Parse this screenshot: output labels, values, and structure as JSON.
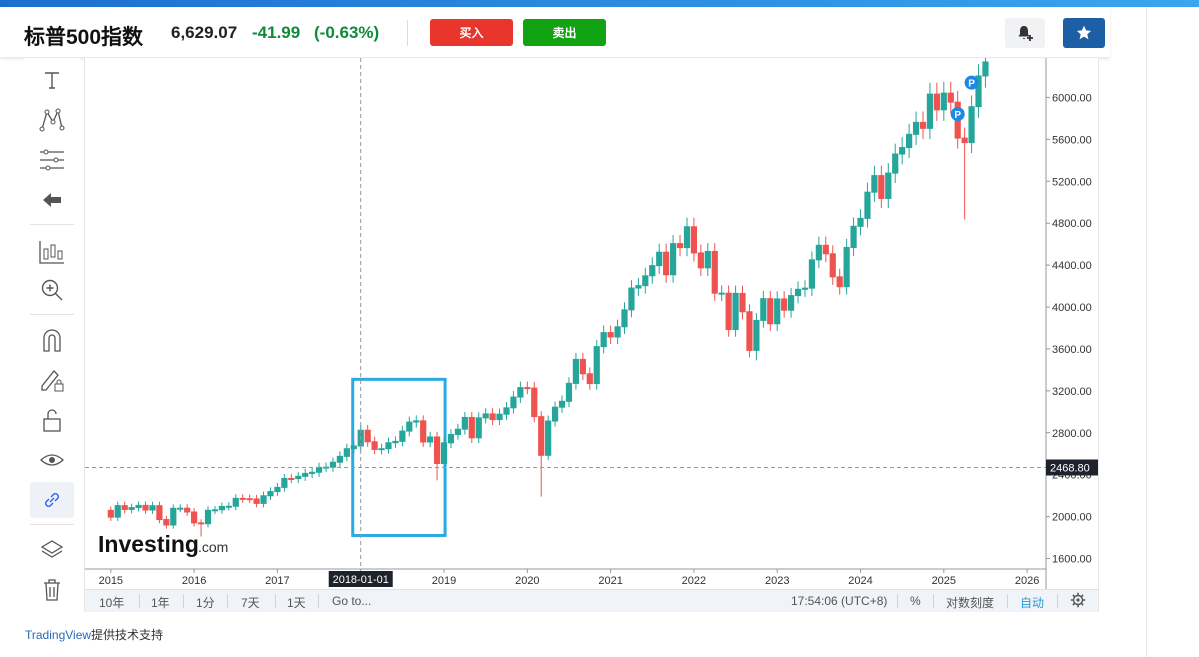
{
  "header": {
    "name": "标普500指数",
    "price": "6,629.07",
    "change": "-41.99",
    "change_pct": "(-0.63%)",
    "buy_label": "买入",
    "sell_label": "卖出"
  },
  "toolbar": {
    "items": [
      "text-tool-icon",
      "pattern-tool-icon",
      "fib-tool-icon",
      "arrow-left-icon",
      "indicator-icon",
      "zoom-in-icon",
      "magnet-icon",
      "lock-drawing-icon",
      "lock-icon",
      "eye-icon",
      "link-icon",
      "layers-icon",
      "trash-icon"
    ],
    "active": "link-icon"
  },
  "bottom_bar": {
    "ranges": [
      "10年",
      "1年",
      "1分",
      "7天",
      "1天"
    ],
    "goto": "Go to...",
    "time": "17:54:06 (UTC+8)",
    "percent": "%",
    "log": "对数刻度",
    "auto": "自动"
  },
  "footer": {
    "brand": "TradingView",
    "suffix": "提供技术支持"
  },
  "logo": {
    "text": "Investing",
    "suffix": ".com"
  },
  "colors": {
    "up": "#26a69a",
    "down": "#ef5350",
    "highlight_box": "#29aae2",
    "crosshair_label_bg": "#1e222d"
  },
  "chart_data": {
    "type": "candlestick",
    "title": "标普500指数",
    "interval": "monthly",
    "ylim": [
      1500,
      6300
    ],
    "yticks": [
      1600,
      2000,
      2400,
      2800,
      3200,
      3600,
      4000,
      4400,
      4800,
      5200,
      5600,
      6000
    ],
    "ytick_labels": [
      "1600.00",
      "2000.00",
      "2400.00",
      "2800.00",
      "3200.00",
      "3600.00",
      "4000.00",
      "4400.00",
      "4800.00",
      "5200.00",
      "5600.00",
      "6000.00"
    ],
    "xlim": [
      "2014-10",
      "2026-03"
    ],
    "xticks": [
      "2015",
      "2016",
      "2017",
      "2018-01-01",
      "2019",
      "2020",
      "2021",
      "2022",
      "2023",
      "2024",
      "2025",
      "2026"
    ],
    "crosshair": {
      "x_label": "2018-01-01",
      "y_label": "2468.80",
      "y_value": 2468.8
    },
    "highlight_range": {
      "start": "2018-01",
      "end": "2018-12",
      "low": 1820,
      "high": 3310
    },
    "markers": [
      {
        "date": "2025-03",
        "label": "P"
      },
      {
        "date": "2025-05",
        "label": "P"
      }
    ],
    "monthly_close": [
      [
        "2014-12",
        2059
      ],
      [
        "2015-01",
        1995
      ],
      [
        "2015-02",
        2105
      ],
      [
        "2015-03",
        2068
      ],
      [
        "2015-04",
        2086
      ],
      [
        "2015-05",
        2107
      ],
      [
        "2015-06",
        2063
      ],
      [
        "2015-07",
        2104
      ],
      [
        "2015-08",
        1972
      ],
      [
        "2015-09",
        1920
      ],
      [
        "2015-10",
        2079
      ],
      [
        "2015-11",
        2080
      ],
      [
        "2015-12",
        2044
      ],
      [
        "2016-01",
        1940
      ],
      [
        "2016-02",
        1932
      ],
      [
        "2016-03",
        2060
      ],
      [
        "2016-04",
        2065
      ],
      [
        "2016-05",
        2097
      ],
      [
        "2016-06",
        2099
      ],
      [
        "2016-07",
        2174
      ],
      [
        "2016-08",
        2171
      ],
      [
        "2016-09",
        2168
      ],
      [
        "2016-10",
        2126
      ],
      [
        "2016-11",
        2199
      ],
      [
        "2016-12",
        2239
      ],
      [
        "2017-01",
        2279
      ],
      [
        "2017-02",
        2364
      ],
      [
        "2017-03",
        2363
      ],
      [
        "2017-04",
        2384
      ],
      [
        "2017-05",
        2412
      ],
      [
        "2017-06",
        2423
      ],
      [
        "2017-07",
        2470
      ],
      [
        "2017-08",
        2472
      ],
      [
        "2017-09",
        2519
      ],
      [
        "2017-10",
        2575
      ],
      [
        "2017-11",
        2648
      ],
      [
        "2017-12",
        2674
      ],
      [
        "2018-01",
        2824
      ],
      [
        "2018-02",
        2714
      ],
      [
        "2018-03",
        2641
      ],
      [
        "2018-04",
        2648
      ],
      [
        "2018-05",
        2705
      ],
      [
        "2018-06",
        2718
      ],
      [
        "2018-07",
        2816
      ],
      [
        "2018-08",
        2902
      ],
      [
        "2018-09",
        2914
      ],
      [
        "2018-10",
        2712
      ],
      [
        "2018-11",
        2760
      ],
      [
        "2018-12",
        2507
      ],
      [
        "2019-01",
        2704
      ],
      [
        "2019-02",
        2784
      ],
      [
        "2019-03",
        2834
      ],
      [
        "2019-04",
        2946
      ],
      [
        "2019-05",
        2752
      ],
      [
        "2019-06",
        2942
      ],
      [
        "2019-07",
        2980
      ],
      [
        "2019-08",
        2926
      ],
      [
        "2019-09",
        2977
      ],
      [
        "2019-10",
        3038
      ],
      [
        "2019-11",
        3141
      ],
      [
        "2019-12",
        3231
      ],
      [
        "2020-01",
        3226
      ],
      [
        "2020-02",
        2954
      ],
      [
        "2020-03",
        2585
      ],
      [
        "2020-04",
        2912
      ],
      [
        "2020-05",
        3044
      ],
      [
        "2020-06",
        3100
      ],
      [
        "2020-07",
        3271
      ],
      [
        "2020-08",
        3500
      ],
      [
        "2020-09",
        3363
      ],
      [
        "2020-10",
        3270
      ],
      [
        "2020-11",
        3622
      ],
      [
        "2020-12",
        3756
      ],
      [
        "2021-01",
        3714
      ],
      [
        "2021-02",
        3811
      ],
      [
        "2021-03",
        3973
      ],
      [
        "2021-04",
        4181
      ],
      [
        "2021-05",
        4204
      ],
      [
        "2021-06",
        4298
      ],
      [
        "2021-07",
        4395
      ],
      [
        "2021-08",
        4523
      ],
      [
        "2021-09",
        4308
      ],
      [
        "2021-10",
        4605
      ],
      [
        "2021-11",
        4567
      ],
      [
        "2021-12",
        4766
      ],
      [
        "2022-01",
        4516
      ],
      [
        "2022-02",
        4374
      ],
      [
        "2022-03",
        4530
      ],
      [
        "2022-04",
        4132
      ],
      [
        "2022-05",
        4132
      ],
      [
        "2022-06",
        3785
      ],
      [
        "2022-07",
        4130
      ],
      [
        "2022-08",
        3955
      ],
      [
        "2022-09",
        3586
      ],
      [
        "2022-10",
        3872
      ],
      [
        "2022-11",
        4080
      ],
      [
        "2022-12",
        3840
      ],
      [
        "2023-01",
        4077
      ],
      [
        "2023-02",
        3970
      ],
      [
        "2023-03",
        4109
      ],
      [
        "2023-04",
        4169
      ],
      [
        "2023-05",
        4180
      ],
      [
        "2023-06",
        4450
      ],
      [
        "2023-07",
        4589
      ],
      [
        "2023-08",
        4508
      ],
      [
        "2023-09",
        4288
      ],
      [
        "2023-10",
        4194
      ],
      [
        "2023-11",
        4568
      ],
      [
        "2023-12",
        4770
      ],
      [
        "2024-01",
        4846
      ],
      [
        "2024-02",
        5096
      ],
      [
        "2024-03",
        5254
      ],
      [
        "2024-04",
        5036
      ],
      [
        "2024-05",
        5278
      ],
      [
        "2024-06",
        5460
      ],
      [
        "2024-07",
        5522
      ],
      [
        "2024-08",
        5648
      ],
      [
        "2024-09",
        5762
      ],
      [
        "2024-10",
        5705
      ],
      [
        "2024-11",
        6032
      ],
      [
        "2024-12",
        5882
      ],
      [
        "2025-01",
        6041
      ],
      [
        "2025-02",
        5955
      ],
      [
        "2025-03",
        5612
      ],
      [
        "2025-04",
        5569
      ],
      [
        "2025-05",
        5912
      ],
      [
        "2025-06",
        6205
      ],
      [
        "2025-07",
        6339
      ]
    ],
    "notable_lows": [
      [
        "2016-02",
        1810
      ],
      [
        "2018-12",
        2346
      ],
      [
        "2020-03",
        2191
      ],
      [
        "2022-10",
        3491
      ],
      [
        "2025-04",
        4835
      ]
    ]
  }
}
